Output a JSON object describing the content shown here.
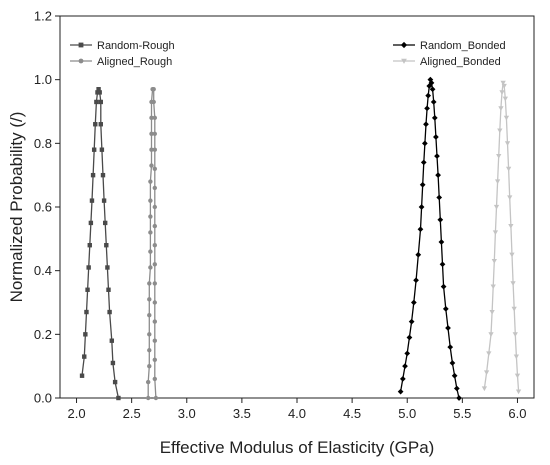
{
  "chart_data": {
    "type": "line",
    "title": "",
    "xlabel": "Effective Modulus of Elasticity (GPa)",
    "ylabel": "Normalized Probability (/)",
    "xlim": [
      1.85,
      6.15
    ],
    "ylim": [
      0.0,
      1.2
    ],
    "xticks": [
      "2.0",
      "2.5",
      "3.0",
      "3.5",
      "4.0",
      "4.5",
      "5.0",
      "5.5",
      "6.0"
    ],
    "yticks": [
      "0.0",
      "0.2",
      "0.4",
      "0.6",
      "0.8",
      "1.0",
      "1.2"
    ],
    "grid": false,
    "legend_left_placement": "top-left",
    "legend_right_placement": "top-right",
    "series": [
      {
        "name": "Random-Rough",
        "color": "#4a4a4a",
        "marker": "square",
        "points": [
          [
            2.05,
            0.07
          ],
          [
            2.07,
            0.13
          ],
          [
            2.08,
            0.2
          ],
          [
            2.09,
            0.27
          ],
          [
            2.1,
            0.34
          ],
          [
            2.11,
            0.41
          ],
          [
            2.12,
            0.48
          ],
          [
            2.13,
            0.55
          ],
          [
            2.14,
            0.62
          ],
          [
            2.15,
            0.7
          ],
          [
            2.16,
            0.78
          ],
          [
            2.17,
            0.86
          ],
          [
            2.18,
            0.93
          ],
          [
            2.19,
            0.96
          ],
          [
            2.2,
            0.97
          ],
          [
            2.21,
            0.96
          ],
          [
            2.22,
            0.93
          ],
          [
            2.22,
            0.86
          ],
          [
            2.23,
            0.78
          ],
          [
            2.24,
            0.7
          ],
          [
            2.25,
            0.62
          ],
          [
            2.26,
            0.55
          ],
          [
            2.27,
            0.48
          ],
          [
            2.28,
            0.41
          ],
          [
            2.29,
            0.34
          ],
          [
            2.3,
            0.27
          ],
          [
            2.32,
            0.18
          ],
          [
            2.33,
            0.11
          ],
          [
            2.35,
            0.05
          ],
          [
            2.38,
            0.0
          ]
        ]
      },
      {
        "name": "Aligned_Rough",
        "color": "#8c8c8c",
        "marker": "circle",
        "points": [
          [
            2.65,
            0.0
          ],
          [
            2.65,
            0.05
          ],
          [
            2.66,
            0.1
          ],
          [
            2.66,
            0.15
          ],
          [
            2.66,
            0.2
          ],
          [
            2.66,
            0.26
          ],
          [
            2.66,
            0.31
          ],
          [
            2.66,
            0.36
          ],
          [
            2.67,
            0.41
          ],
          [
            2.67,
            0.46
          ],
          [
            2.67,
            0.52
          ],
          [
            2.67,
            0.57
          ],
          [
            2.67,
            0.62
          ],
          [
            2.67,
            0.68
          ],
          [
            2.68,
            0.73
          ],
          [
            2.68,
            0.78
          ],
          [
            2.68,
            0.83
          ],
          [
            2.68,
            0.88
          ],
          [
            2.68,
            0.93
          ],
          [
            2.69,
            0.97
          ],
          [
            2.7,
            0.97
          ],
          [
            2.7,
            0.93
          ],
          [
            2.71,
            0.88
          ],
          [
            2.71,
            0.83
          ],
          [
            2.71,
            0.78
          ],
          [
            2.71,
            0.72
          ],
          [
            2.71,
            0.66
          ],
          [
            2.71,
            0.6
          ],
          [
            2.71,
            0.54
          ],
          [
            2.71,
            0.48
          ],
          [
            2.71,
            0.42
          ],
          [
            2.71,
            0.36
          ],
          [
            2.71,
            0.3
          ],
          [
            2.71,
            0.24
          ],
          [
            2.71,
            0.18
          ],
          [
            2.71,
            0.12
          ],
          [
            2.71,
            0.06
          ],
          [
            2.72,
            0.0
          ]
        ]
      },
      {
        "name": "Random_Bonded",
        "color": "#000000",
        "marker": "diamond",
        "points": [
          [
            4.94,
            0.02
          ],
          [
            4.96,
            0.06
          ],
          [
            4.98,
            0.1
          ],
          [
            5.0,
            0.14
          ],
          [
            5.02,
            0.19
          ],
          [
            5.04,
            0.24
          ],
          [
            5.06,
            0.3
          ],
          [
            5.08,
            0.37
          ],
          [
            5.1,
            0.45
          ],
          [
            5.12,
            0.53
          ],
          [
            5.13,
            0.6
          ],
          [
            5.14,
            0.67
          ],
          [
            5.15,
            0.74
          ],
          [
            5.16,
            0.8
          ],
          [
            5.17,
            0.86
          ],
          [
            5.18,
            0.91
          ],
          [
            5.19,
            0.95
          ],
          [
            5.2,
            0.98
          ],
          [
            5.21,
            1.0
          ],
          [
            5.22,
            0.99
          ],
          [
            5.23,
            0.97
          ],
          [
            5.24,
            0.93
          ],
          [
            5.25,
            0.88
          ],
          [
            5.26,
            0.82
          ],
          [
            5.27,
            0.76
          ],
          [
            5.28,
            0.7
          ],
          [
            5.29,
            0.63
          ],
          [
            5.3,
            0.56
          ],
          [
            5.31,
            0.49
          ],
          [
            5.32,
            0.42
          ],
          [
            5.33,
            0.35
          ],
          [
            5.35,
            0.28
          ],
          [
            5.37,
            0.22
          ],
          [
            5.39,
            0.16
          ],
          [
            5.41,
            0.11
          ],
          [
            5.43,
            0.07
          ],
          [
            5.45,
            0.03
          ],
          [
            5.47,
            0.0
          ]
        ]
      },
      {
        "name": "Aligned_Bonded",
        "color": "#c4c4c4",
        "marker": "triangle-down",
        "points": [
          [
            5.7,
            0.03
          ],
          [
            5.72,
            0.08
          ],
          [
            5.74,
            0.14
          ],
          [
            5.76,
            0.2
          ],
          [
            5.77,
            0.27
          ],
          [
            5.78,
            0.35
          ],
          [
            5.79,
            0.43
          ],
          [
            5.8,
            0.52
          ],
          [
            5.81,
            0.6
          ],
          [
            5.82,
            0.68
          ],
          [
            5.83,
            0.76
          ],
          [
            5.84,
            0.84
          ],
          [
            5.85,
            0.91
          ],
          [
            5.86,
            0.96
          ],
          [
            5.87,
            0.99
          ],
          [
            5.88,
            0.98
          ],
          [
            5.89,
            0.94
          ],
          [
            5.9,
            0.88
          ],
          [
            5.91,
            0.8
          ],
          [
            5.92,
            0.72
          ],
          [
            5.93,
            0.63
          ],
          [
            5.94,
            0.54
          ],
          [
            5.95,
            0.45
          ],
          [
            5.96,
            0.36
          ],
          [
            5.97,
            0.28
          ],
          [
            5.98,
            0.2
          ],
          [
            5.99,
            0.13
          ],
          [
            6.0,
            0.07
          ],
          [
            6.01,
            0.02
          ]
        ]
      }
    ]
  }
}
